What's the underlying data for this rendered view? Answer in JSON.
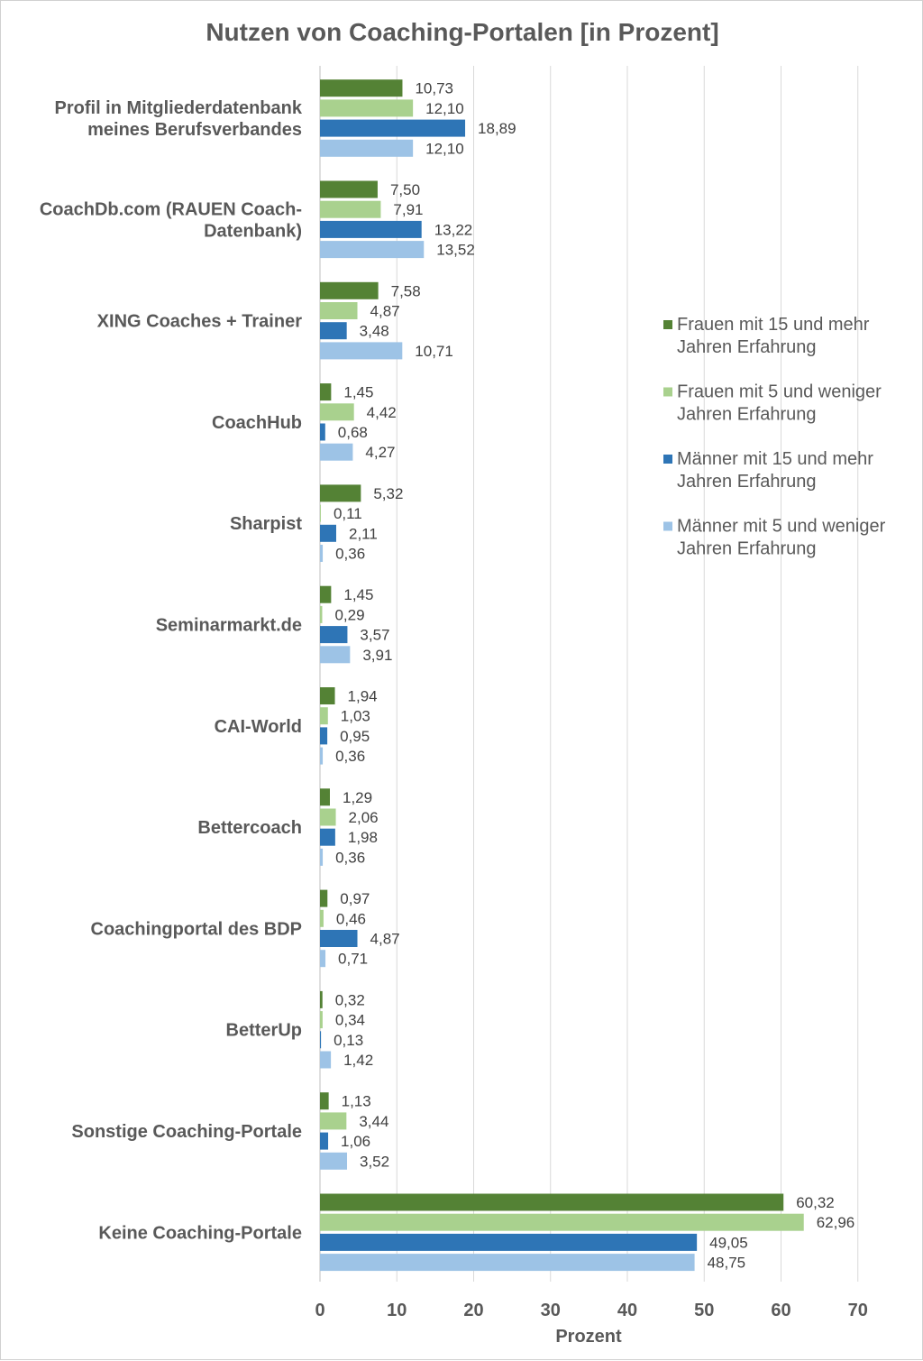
{
  "chart_data": {
    "type": "bar",
    "orientation": "horizontal",
    "title": "Nutzen von Coaching-Portalen [in Prozent]",
    "xlabel": "Prozent",
    "ylabel": "",
    "xlim": [
      0,
      70
    ],
    "xticks": [
      0,
      10,
      20,
      30,
      40,
      50,
      60,
      70
    ],
    "grid": true,
    "legend_position": "right",
    "categories": [
      [
        "Profil in Mitgliederdatenbank",
        "meines Berufsverbandes"
      ],
      [
        "CoachDb.com (RAUEN Coach-",
        "Datenbank)"
      ],
      [
        "XING Coaches + Trainer"
      ],
      [
        "CoachHub"
      ],
      [
        "Sharpist"
      ],
      [
        "Seminarmarkt.de"
      ],
      [
        "CAI-World"
      ],
      [
        "Bettercoach"
      ],
      [
        "Coachingportal des BDP"
      ],
      [
        "BetterUp"
      ],
      [
        "Sonstige Coaching-Portale"
      ],
      [
        "Keine Coaching-Portale"
      ]
    ],
    "series": [
      {
        "name": [
          "Frauen mit 15 und mehr",
          "Jahren Erfahrung"
        ],
        "color": "#548235",
        "values": [
          10.73,
          7.5,
          7.58,
          1.45,
          5.32,
          1.45,
          1.94,
          1.29,
          0.97,
          0.32,
          1.13,
          60.32
        ],
        "labels": [
          "10,73",
          "7,50",
          "7,58",
          "1,45",
          "5,32",
          "1,45",
          "1,94",
          "1,29",
          "0,97",
          "0,32",
          "1,13",
          "60,32"
        ]
      },
      {
        "name": [
          "Frauen mit 5 und weniger",
          "Jahren Erfahrung"
        ],
        "color": "#a9d18e",
        "values": [
          12.1,
          7.91,
          4.87,
          4.42,
          0.11,
          0.29,
          1.03,
          2.06,
          0.46,
          0.34,
          3.44,
          62.96
        ],
        "labels": [
          "12,10",
          "7,91",
          "4,87",
          "4,42",
          "0,11",
          "0,29",
          "1,03",
          "2,06",
          "0,46",
          "0,34",
          "3,44",
          "62,96"
        ]
      },
      {
        "name": [
          "Männer mit 15 und mehr",
          "Jahren Erfahrung"
        ],
        "color": "#2e75b6",
        "values": [
          18.89,
          13.22,
          3.48,
          0.68,
          2.11,
          3.57,
          0.95,
          1.98,
          4.87,
          0.13,
          1.06,
          49.05
        ],
        "labels": [
          "18,89",
          "13,22",
          "3,48",
          "0,68",
          "2,11",
          "3,57",
          "0,95",
          "1,98",
          "4,87",
          "0,13",
          "1,06",
          "49,05"
        ]
      },
      {
        "name": [
          "Männer mit 5 und weniger",
          "Jahren Erfahrung"
        ],
        "color": "#9dc3e6",
        "values": [
          12.1,
          13.52,
          10.71,
          4.27,
          0.36,
          3.91,
          0.36,
          0.36,
          0.71,
          1.42,
          3.52,
          48.75
        ],
        "labels": [
          "12,10",
          "13,52",
          "10,71",
          "4,27",
          "0,36",
          "3,91",
          "0,36",
          "0,36",
          "0,71",
          "1,42",
          "3,52",
          "48,75"
        ]
      }
    ]
  }
}
